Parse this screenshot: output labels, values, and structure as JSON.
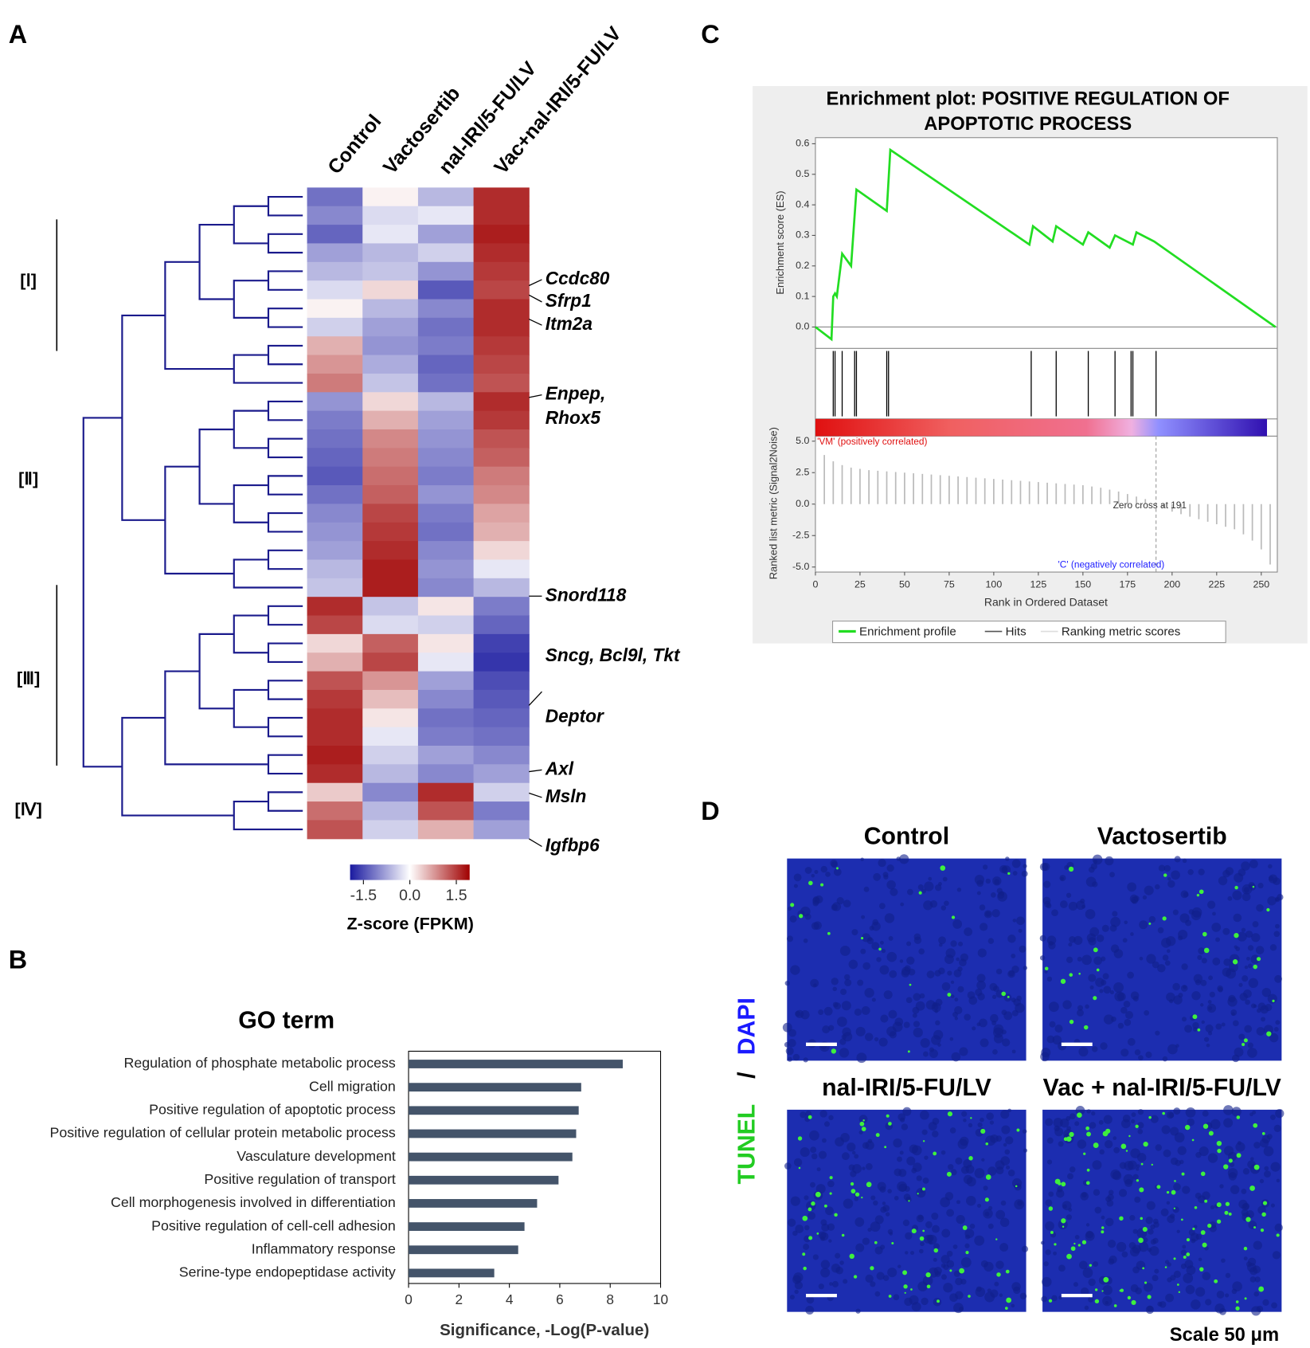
{
  "panel_labels": [
    "A",
    "B",
    "C",
    "D"
  ],
  "chart_data": [
    {
      "type": "heatmap",
      "columns": [
        "Control",
        "Vactosertib",
        "nal-IRI/5-FU/LV",
        "Vac+nal-IRI/5-FU/LV"
      ],
      "clusters": [
        "[Ⅰ]",
        "[Ⅱ]",
        "[Ⅲ]",
        "[Ⅳ]"
      ],
      "genes": [
        "Ccdc80",
        "Sfrp1",
        "Itm2a",
        "Enpep,",
        "Rhox5",
        "Snord118",
        "Sncg, Bcl9l, Tkt",
        "Deptor",
        "Axl",
        "Msln",
        "Igfbp6"
      ],
      "rows": [
        [
          -1.2,
          0.1,
          -0.6,
          1.6
        ],
        [
          -1.0,
          -0.3,
          -0.2,
          1.6
        ],
        [
          -1.3,
          -0.2,
          -0.8,
          1.7
        ],
        [
          -0.8,
          -0.6,
          -0.4,
          1.6
        ],
        [
          -0.6,
          -0.5,
          -0.9,
          1.5
        ],
        [
          -0.3,
          0.3,
          -1.4,
          1.4
        ],
        [
          0.1,
          -0.6,
          -1.0,
          1.6
        ],
        [
          -0.4,
          -0.8,
          -1.2,
          1.6
        ],
        [
          0.6,
          -0.9,
          -1.1,
          1.5
        ],
        [
          0.8,
          -0.7,
          -1.3,
          1.4
        ],
        [
          1.0,
          -0.5,
          -1.2,
          1.3
        ],
        [
          -0.9,
          0.3,
          -0.6,
          1.6
        ],
        [
          -1.1,
          0.6,
          -0.8,
          1.5
        ],
        [
          -1.2,
          0.9,
          -0.9,
          1.3
        ],
        [
          -1.3,
          1.0,
          -1.0,
          1.2
        ],
        [
          -1.4,
          1.1,
          -1.1,
          1.0
        ],
        [
          -1.2,
          1.2,
          -0.9,
          0.9
        ],
        [
          -1.0,
          1.4,
          -1.1,
          0.7
        ],
        [
          -0.9,
          1.5,
          -1.2,
          0.6
        ],
        [
          -0.8,
          1.6,
          -1.0,
          0.3
        ],
        [
          -0.6,
          1.7,
          -0.9,
          -0.2
        ],
        [
          -0.5,
          1.7,
          -1.0,
          -0.6
        ],
        [
          1.6,
          -0.5,
          0.2,
          -1.1
        ],
        [
          1.4,
          -0.3,
          -0.4,
          -1.3
        ],
        [
          0.3,
          1.2,
          0.2,
          -1.6
        ],
        [
          0.6,
          1.4,
          -0.2,
          -1.7
        ],
        [
          1.3,
          0.8,
          -0.8,
          -1.5
        ],
        [
          1.5,
          0.5,
          -1.0,
          -1.4
        ],
        [
          1.6,
          0.2,
          -1.2,
          -1.3
        ],
        [
          1.6,
          -0.2,
          -1.1,
          -1.2
        ],
        [
          1.7,
          -0.4,
          -0.8,
          -1.0
        ],
        [
          1.6,
          -0.6,
          -1.0,
          -0.8
        ],
        [
          0.4,
          -1.0,
          1.6,
          -0.4
        ],
        [
          1.1,
          -0.6,
          1.3,
          -1.1
        ],
        [
          1.3,
          -0.4,
          0.6,
          -0.8
        ]
      ],
      "zlim": [
        -1.93,
        1.93
      ],
      "colorbar_ticks": [
        -1.5,
        {
          "value": 0,
          "label": "0.0"
        },
        1.5
      ],
      "colorbar_label": "Z-score (FPKM)"
    },
    {
      "type": "bar",
      "title": "GO term",
      "categories": [
        "Regulation of phosphate metabolic process",
        "Cell migration",
        "Positive regulation of apoptotic process",
        "Positive regulation of cellular protein metabolic process",
        "Vasculature development",
        "Positive regulation of transport",
        "Cell morphogenesis involved in differentiation",
        "Positive regulation of cell-cell adhesion",
        "Inflammatory response",
        "Serine-type endopeptidase activity"
      ],
      "values": [
        8.5,
        6.85,
        6.75,
        6.65,
        6.5,
        5.95,
        5.1,
        4.6,
        4.35,
        3.4
      ],
      "color": "#44546a",
      "xlim": [
        0,
        10
      ],
      "xticks": [
        0,
        2,
        4,
        6,
        8,
        10
      ],
      "xlabel": "Significance, -Log(P-value)"
    },
    {
      "type": "gsea",
      "title": [
        "Enrichment plot: POSITIVE REGULATION OF",
        "APOPTOTIC PROCESS"
      ],
      "es": {
        "x": [
          0,
          9,
          10,
          11,
          12,
          15,
          20,
          23,
          40,
          42,
          120,
          122,
          133,
          135,
          150,
          153,
          165,
          168,
          178,
          180,
          190,
          258
        ],
        "values": [
          0,
          -0.04,
          0.1,
          0.11,
          0.1,
          0.24,
          0.2,
          0.45,
          0.38,
          0.58,
          0.27,
          0.33,
          0.28,
          0.33,
          0.27,
          0.31,
          0.26,
          0.3,
          0.27,
          0.31,
          0.28,
          0
        ],
        "color": "#22dd22"
      },
      "hits": [
        10,
        11,
        15,
        22,
        23,
        40,
        41,
        121,
        135,
        153,
        168,
        177,
        178,
        191
      ],
      "metric": {
        "x": [
          0,
          5,
          10,
          15,
          20,
          25,
          30,
          35,
          40,
          45,
          50,
          55,
          60,
          65,
          70,
          75,
          80,
          85,
          90,
          95,
          100,
          105,
          110,
          115,
          120,
          125,
          130,
          135,
          140,
          145,
          150,
          155,
          160,
          165,
          170,
          175,
          180,
          185,
          190,
          195,
          200,
          205,
          210,
          215,
          220,
          225,
          230,
          235,
          240,
          245,
          250,
          255
        ],
        "values": [
          5.0,
          3.9,
          3.4,
          3.1,
          2.9,
          2.8,
          2.7,
          2.65,
          2.6,
          2.55,
          2.5,
          2.45,
          2.4,
          2.35,
          2.3,
          2.25,
          2.2,
          2.15,
          2.1,
          2.05,
          2.0,
          1.95,
          1.9,
          1.85,
          1.8,
          1.75,
          1.7,
          1.65,
          1.6,
          1.55,
          1.5,
          1.4,
          1.3,
          1.15,
          1.0,
          0.8,
          0.6,
          0.4,
          0.05,
          -0.3,
          -0.6,
          -0.8,
          -1.0,
          -1.2,
          -1.4,
          -1.6,
          -1.8,
          -2.0,
          -2.4,
          -2.9,
          -3.6,
          -4.8
        ],
        "color": "#bbbbbb"
      },
      "xlim": [
        0,
        259
      ],
      "xticks": [
        0,
        25,
        50,
        75,
        100,
        125,
        150,
        175,
        200,
        225,
        250
      ],
      "ylim": [
        -0.07,
        0.62
      ],
      "yticks": [
        {
          "value": 0,
          "label": "0.0"
        },
        0.1,
        0.2,
        0.3,
        0.4,
        0.5,
        0.6
      ],
      "y2lim": [
        -5.4,
        5.4
      ],
      "y2ticks": [
        {
          "value": 5,
          "label": "5.0"
        },
        2.5,
        {
          "value": 0,
          "label": "0.0"
        },
        -2.5,
        {
          "value": -5,
          "label": "-5.0"
        }
      ],
      "ylabel": "Enrichment score (ES)",
      "y2label": "Ranked list metric (Signal2Noise)",
      "xlabel": "Rank in Ordered Dataset",
      "pos_label": "'VM' (positively correlated)",
      "neg_label": "'C' (negatively correlated)",
      "zero_cross": 191,
      "zero_cross_label": "Zero cross at 191",
      "legend": [
        "Enrichment profile",
        "Hits",
        "Ranking metric scores"
      ]
    }
  ],
  "images": {
    "titles": [
      "Control",
      "Vactosertib",
      "nal-IRI/5-FU/LV",
      "Vac + nal-IRI/5-FU/LV"
    ],
    "stain_a": "TUNEL",
    "stain_sep": "/",
    "stain_b": "DAPI",
    "scale": "Scale 50 μm"
  }
}
